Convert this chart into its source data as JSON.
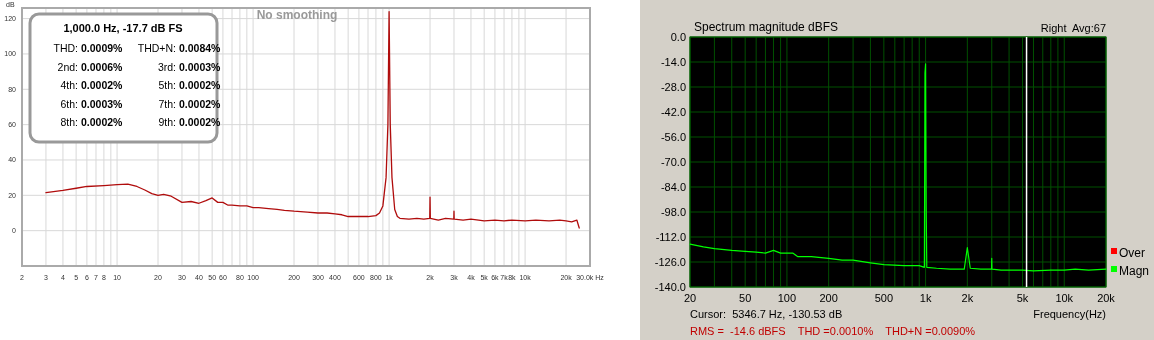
{
  "chart_data": [
    {
      "type": "line",
      "ylabel": "dB",
      "log": "x",
      "grid": true,
      "xlim": [
        2,
        30000
      ],
      "ylim": [
        -20,
        126
      ],
      "xticks": [
        2,
        3,
        4,
        5,
        6,
        7,
        8,
        {
          "value": 9,
          "label": null
        },
        10,
        20,
        30,
        40,
        50,
        60,
        {
          "value": 70,
          "label": null
        },
        80,
        {
          "value": 90,
          "label": null
        },
        100,
        200,
        300,
        400,
        {
          "value": 500,
          "label": null
        },
        600,
        {
          "value": 700,
          "label": null
        },
        800,
        {
          "value": 900,
          "label": null
        },
        {
          "value": 1000,
          "label": "1k"
        },
        {
          "value": 2000,
          "label": "2k"
        },
        {
          "value": 3000,
          "label": "3k"
        },
        {
          "value": 4000,
          "label": "4k"
        },
        {
          "value": 5000,
          "label": "5k"
        },
        {
          "value": 6000,
          "label": "6k"
        },
        {
          "value": 7000,
          "label": "7k"
        },
        {
          "value": 8000,
          "label": "8k"
        },
        {
          "value": 9000,
          "label": null
        },
        {
          "value": 10000,
          "label": "10k"
        },
        {
          "value": 20000,
          "label": "20k"
        },
        {
          "value": 30000,
          "label": "30.0k Hz"
        }
      ],
      "yticks": [
        0,
        20,
        40,
        60,
        80,
        100,
        120
      ],
      "annotations": [
        "1,000.0 Hz, -17.7 dB FS",
        "THD: 0.0009%",
        "THD+N: 0.0084%",
        "2nd: 0.0006%",
        "3rd: 0.0003%",
        "4th: 0.0002%",
        "5th: 0.0002%",
        "6th: 0.0003%",
        "7th: 0.0002%",
        "8th: 0.0002%",
        "9th: 0.0002%",
        "No smoothing"
      ],
      "series": [
        {
          "color": "#b00c0c",
          "x": [
            3,
            4,
            5,
            6,
            8,
            10,
            12,
            14,
            16,
            18,
            20,
            22,
            25,
            30,
            35,
            40,
            45,
            50,
            55,
            60,
            65,
            70,
            80,
            90,
            100,
            110,
            130,
            150,
            170,
            200,
            250,
            300,
            350,
            400,
            450,
            500,
            600,
            700,
            800,
            850,
            900,
            950,
            980,
            1000,
            1020,
            1050,
            1100,
            1150,
            1200,
            1400,
            1600,
            1800,
            1990,
            2000,
            2010,
            2300,
            2600,
            2990,
            3000,
            3010,
            3500,
            4000,
            5000,
            6000,
            7000,
            8000,
            10000,
            12000,
            15000,
            18000,
            20000,
            22000,
            24000,
            25000
          ],
          "values": [
            21.5,
            22.8,
            24,
            25,
            25.5,
            26,
            26.3,
            25,
            23,
            21,
            20,
            20.5,
            19.5,
            16,
            16.5,
            15.5,
            17,
            18.5,
            16,
            16,
            14.5,
            14.5,
            14,
            14,
            13,
            13,
            12.5,
            12,
            11.5,
            11,
            10.5,
            10,
            10,
            9.5,
            9,
            8,
            8,
            8,
            8.5,
            10,
            14,
            30,
            60,
            124,
            60,
            30,
            12,
            8,
            7,
            6.5,
            7,
            6.5,
            7,
            19,
            7,
            6,
            7,
            6.5,
            11,
            6.5,
            6,
            6.5,
            5.5,
            6,
            5.5,
            6,
            5.5,
            6,
            5.5,
            6,
            5.5,
            5,
            6,
            1.5
          ]
        }
      ]
    },
    {
      "type": "line",
      "title": "Spectrum magnitude dBFS",
      "xlabel": "Frequency(Hz)",
      "log": "x",
      "grid": true,
      "legend": "right",
      "xlim": [
        20,
        20000
      ],
      "ylim": [
        -140,
        0
      ],
      "xticks": [
        20,
        {
          "value": 30,
          "label": null
        },
        {
          "value": 40,
          "label": null
        },
        50,
        {
          "value": 60,
          "label": null
        },
        {
          "value": 70,
          "label": null
        },
        {
          "value": 80,
          "label": null
        },
        {
          "value": 90,
          "label": null
        },
        100,
        200,
        {
          "value": 300,
          "label": null
        },
        {
          "value": 400,
          "label": null
        },
        500,
        {
          "value": 600,
          "label": null
        },
        {
          "value": 700,
          "label": null
        },
        {
          "value": 800,
          "label": null
        },
        {
          "value": 900,
          "label": null
        },
        {
          "value": 1000,
          "label": "1k"
        },
        {
          "value": 2000,
          "label": "2k"
        },
        {
          "value": 3000,
          "label": null
        },
        {
          "value": 4000,
          "label": null
        },
        {
          "value": 5000,
          "label": "5k"
        },
        {
          "value": 6000,
          "label": null
        },
        {
          "value": 7000,
          "label": null
        },
        {
          "value": 8000,
          "label": null
        },
        {
          "value": 9000,
          "label": null
        },
        {
          "value": 10000,
          "label": "10k"
        },
        {
          "value": 20000,
          "label": "20k"
        }
      ],
      "yticks": [
        {
          "value": -140,
          "label": "-140.0"
        },
        {
          "value": -126,
          "label": "-126.0"
        },
        {
          "value": -112,
          "label": "-112.0"
        },
        {
          "value": -98,
          "label": "-98.0"
        },
        {
          "value": -84,
          "label": "-84.0"
        },
        {
          "value": -70,
          "label": "-70.0"
        },
        {
          "value": -56,
          "label": "-56.0"
        },
        {
          "value": -42,
          "label": "-42.0"
        },
        {
          "value": -28,
          "label": "-28.0"
        },
        {
          "value": -14,
          "label": "-14.0"
        },
        {
          "value": 0,
          "label": "0.0"
        }
      ],
      "ref_lines": [
        {
          "axis": "x",
          "value": 5346.7,
          "color": "#ffffff"
        }
      ],
      "annotations": [
        "Right  Avg:67",
        "Cursor:  5346.7 Hz, -130.53 dB",
        "RMS =  -14.6 dBFS    THD =0.0010%    THD+N =0.0090%"
      ],
      "series": [
        {
          "name": "Over",
          "color": "#ff0000"
        },
        {
          "name": "Magn",
          "color": "#00ff00",
          "x": [
            20,
            25,
            30,
            40,
            50,
            60,
            70,
            80,
            90,
            100,
            110,
            120,
            150,
            200,
            250,
            300,
            400,
            500,
            700,
            900,
            980,
            990,
            1000,
            1010,
            1020,
            1200,
            1500,
            1900,
            2000,
            2100,
            2500,
            2990,
            3000,
            3010,
            3500,
            4000,
            5000,
            6000,
            8000,
            10000,
            12000,
            15000,
            20000
          ],
          "values": [
            -116,
            -117.5,
            -118.5,
            -119.5,
            -120,
            -120.5,
            -121,
            -119.5,
            -121,
            -121,
            -121,
            -123,
            -123,
            -124,
            -125,
            -125,
            -126.5,
            -127.5,
            -128,
            -128,
            -129,
            -20,
            -15,
            -95,
            -129,
            -129.5,
            -130,
            -130,
            -118,
            -129.5,
            -130,
            -130,
            -124,
            -130,
            -130.5,
            -130.5,
            -130.5,
            -131,
            -130.5,
            -130.5,
            -130,
            -130.5,
            -130
          ]
        }
      ]
    }
  ]
}
